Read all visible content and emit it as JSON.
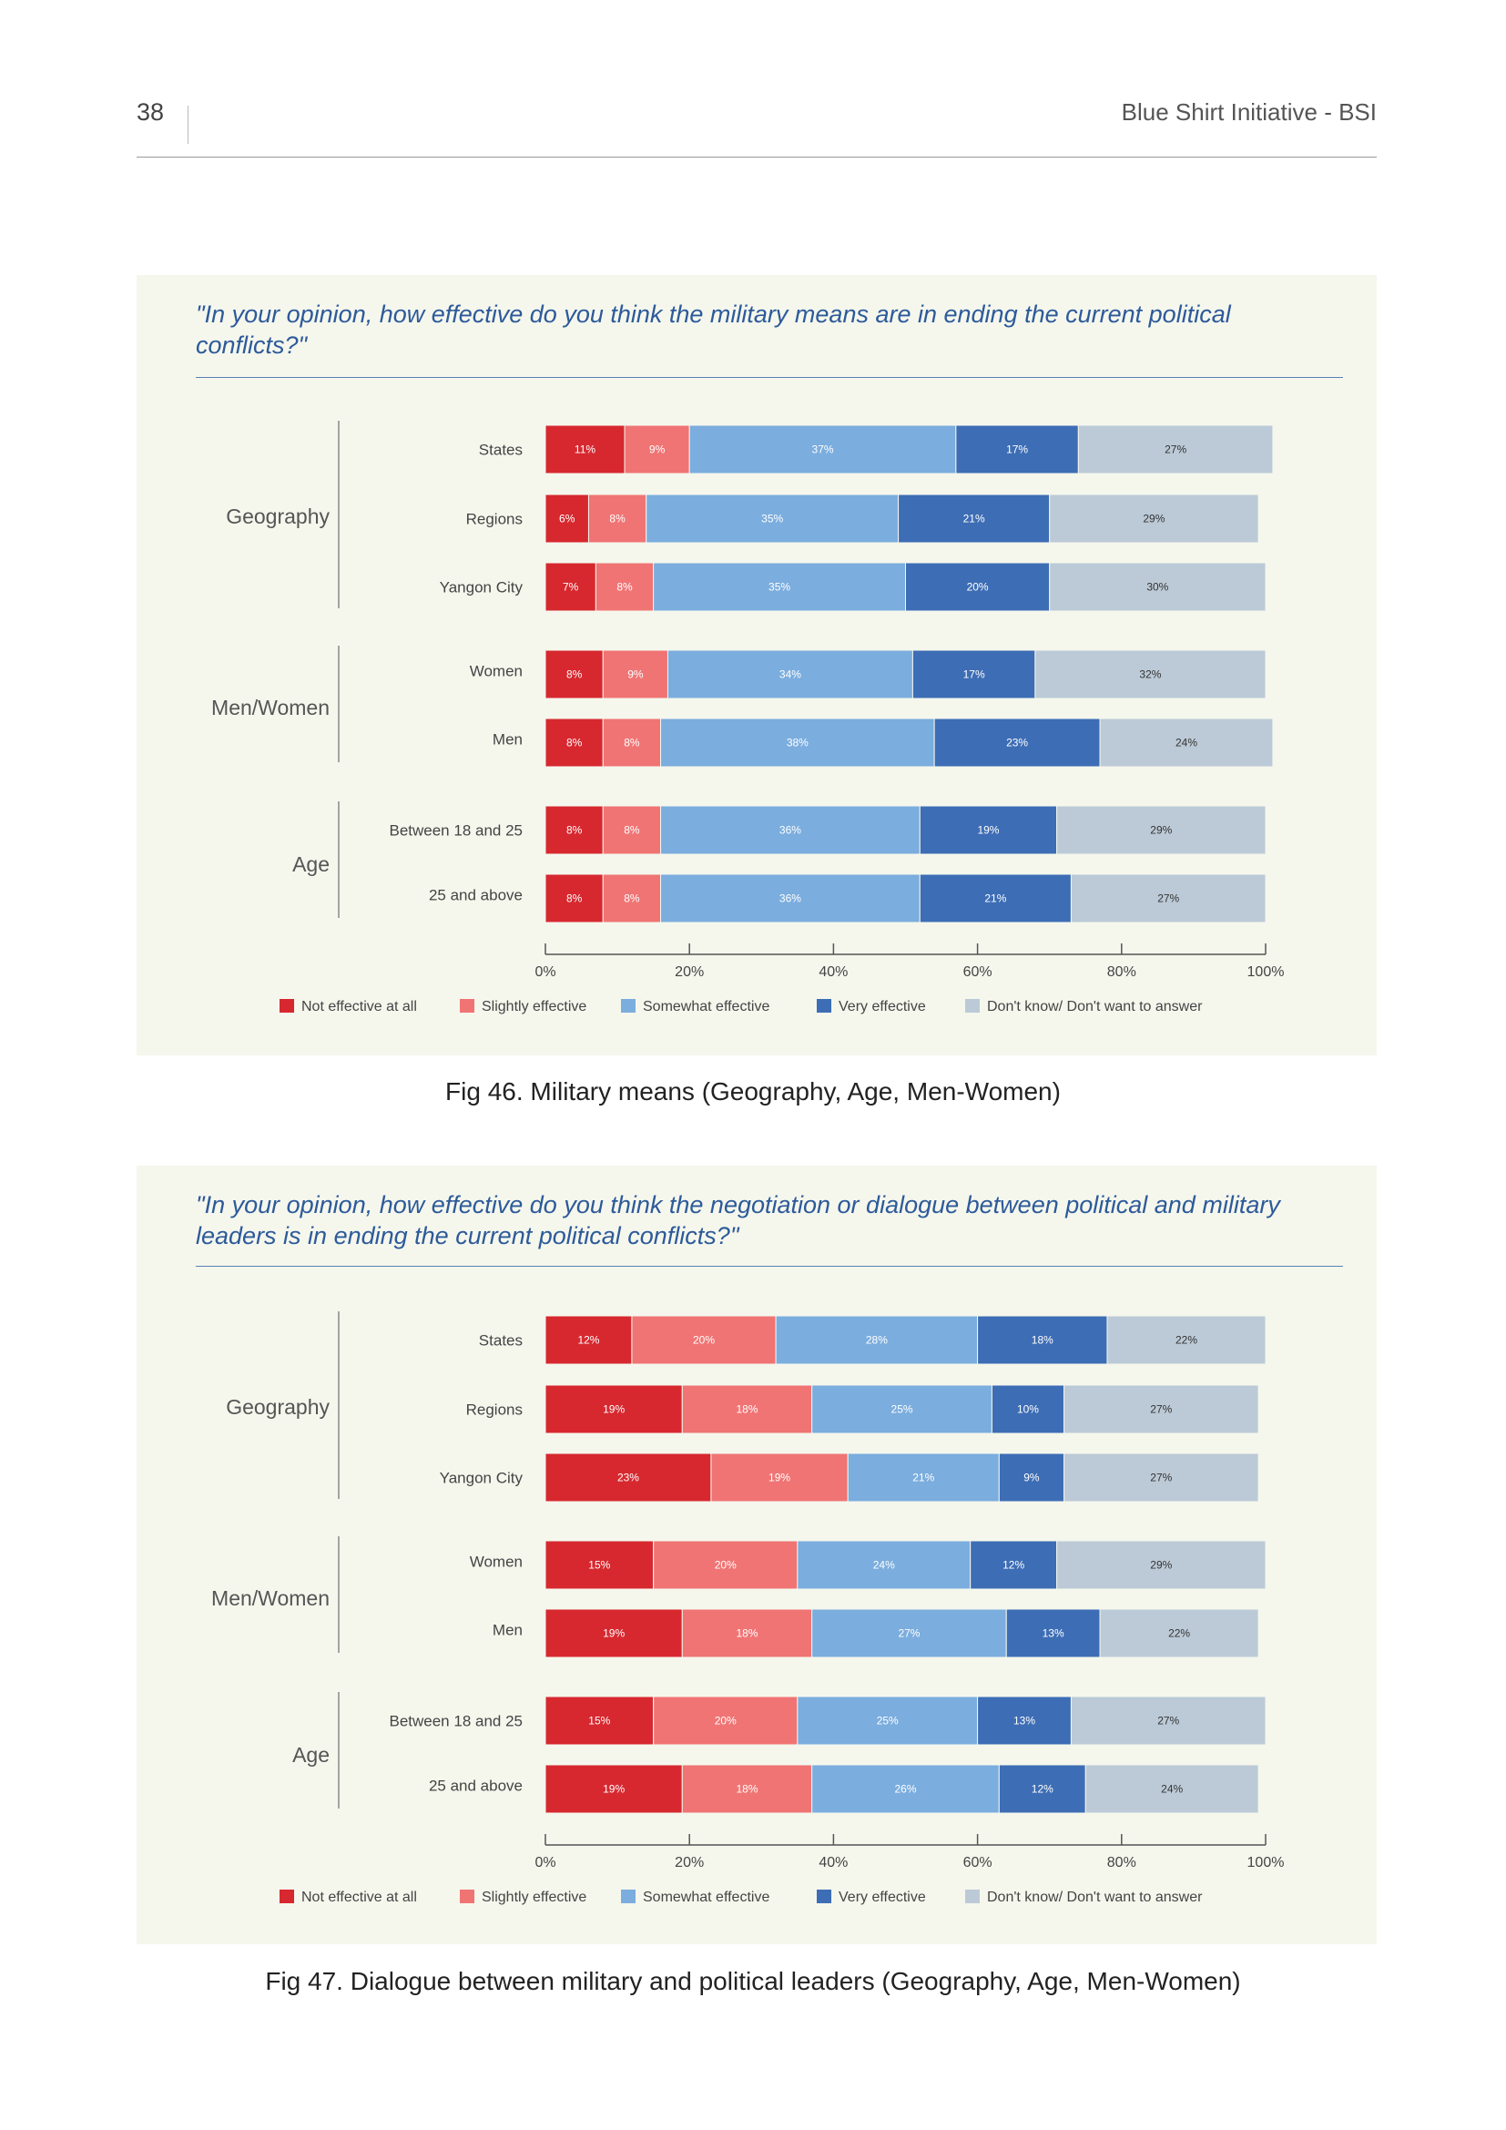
{
  "header": {
    "page_number": "38",
    "running_title": "Blue Shirt Initiative - BSI"
  },
  "colors": {
    "not_effective": "#d7282f",
    "slightly_effective": "#f07474",
    "somewhat_effective": "#7badde",
    "very_effective": "#3d6db5",
    "dont_know": "#bccad7"
  },
  "chart_data": [
    {
      "type": "bar",
      "orientation": "horizontal",
      "stacked": true,
      "title": "\"In your opinion, how effective do you think the military means are in ending the current political conflicts?\"",
      "caption": "Fig 46. Military means (Geography, Age, Men-Women)",
      "groups": [
        {
          "name": "Geography",
          "categories": [
            "States",
            "Regions",
            "Yangon City"
          ]
        },
        {
          "name": "Men/Women",
          "categories": [
            "Women",
            "Men"
          ]
        },
        {
          "name": "Age",
          "categories": [
            "Between 18 and 25",
            "25 and above"
          ]
        }
      ],
      "categories": [
        "States",
        "Regions",
        "Yangon City",
        "Women",
        "Men",
        "Between 18 and 25",
        "25 and above"
      ],
      "series": [
        {
          "name": "Not effective at all",
          "values": [
            11,
            6,
            7,
            8,
            8,
            8,
            8
          ]
        },
        {
          "name": "Slightly effective",
          "values": [
            9,
            8,
            8,
            9,
            8,
            8,
            8
          ]
        },
        {
          "name": "Somewhat effective",
          "values": [
            37,
            35,
            35,
            34,
            38,
            36,
            36
          ]
        },
        {
          "name": "Very effective",
          "values": [
            17,
            21,
            20,
            17,
            23,
            19,
            21
          ]
        },
        {
          "name": "Don't know/ Don't want to answer",
          "values": [
            27,
            29,
            30,
            32,
            24,
            29,
            27
          ]
        }
      ],
      "xlim": [
        0,
        100
      ],
      "xticks": [
        "0%",
        "20%",
        "40%",
        "60%",
        "80%",
        "100%"
      ],
      "legend": "bottom"
    },
    {
      "type": "bar",
      "orientation": "horizontal",
      "stacked": true,
      "title": "\"In your opinion, how effective do you think the negotiation or dialogue between political and military leaders is in ending the current political conflicts?\"",
      "caption": "Fig 47. Dialogue between military and political leaders (Geography, Age, Men-Women)",
      "groups": [
        {
          "name": "Geography",
          "categories": [
            "States",
            "Regions",
            "Yangon City"
          ]
        },
        {
          "name": "Men/Women",
          "categories": [
            "Women",
            "Men"
          ]
        },
        {
          "name": "Age",
          "categories": [
            "Between 18 and 25",
            "25 and above"
          ]
        }
      ],
      "categories": [
        "States",
        "Regions",
        "Yangon City",
        "Women",
        "Men",
        "Between 18 and 25",
        "25 and above"
      ],
      "series": [
        {
          "name": "Not effective at all",
          "values": [
            12,
            19,
            23,
            15,
            19,
            15,
            19
          ]
        },
        {
          "name": "Slightly effective",
          "values": [
            20,
            18,
            19,
            20,
            18,
            20,
            18
          ]
        },
        {
          "name": "Somewhat effective",
          "values": [
            28,
            25,
            21,
            24,
            27,
            25,
            26
          ]
        },
        {
          "name": "Very effective",
          "values": [
            18,
            10,
            9,
            12,
            13,
            13,
            12
          ]
        },
        {
          "name": "Don't know/ Don't want to answer",
          "values": [
            22,
            27,
            27,
            29,
            22,
            27,
            24
          ]
        }
      ],
      "xlim": [
        0,
        100
      ],
      "xticks": [
        "0%",
        "20%",
        "40%",
        "60%",
        "80%",
        "100%"
      ],
      "legend": "bottom"
    }
  ]
}
